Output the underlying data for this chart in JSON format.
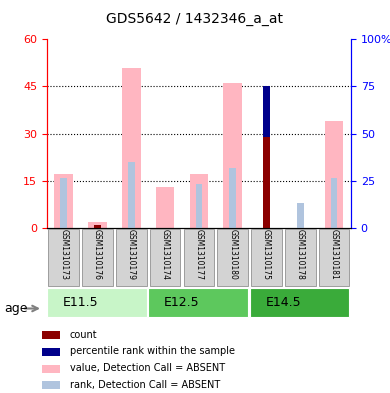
{
  "title": "GDS5642 / 1432346_a_at",
  "samples": [
    "GSM1310173",
    "GSM1310176",
    "GSM1310179",
    "GSM1310174",
    "GSM1310177",
    "GSM1310180",
    "GSM1310175",
    "GSM1310178",
    "GSM1310181"
  ],
  "age_groups": [
    {
      "label": "E11.5",
      "samples": [
        0,
        1,
        2
      ],
      "color": "#90EE90"
    },
    {
      "label": "E12.5",
      "samples": [
        3,
        4,
        5
      ],
      "color": "#3CB371"
    },
    {
      "label": "E14.5",
      "samples": [
        6,
        7,
        8
      ],
      "color": "#2E8B57"
    }
  ],
  "value_absent": [
    17,
    2,
    51,
    13,
    17,
    46,
    0,
    0,
    34
  ],
  "rank_absent": [
    16,
    0,
    21,
    0,
    14,
    19,
    0,
    8,
    16
  ],
  "count_value": [
    0,
    1,
    0,
    0,
    0,
    0,
    29,
    0,
    0
  ],
  "percentile_value": [
    0,
    0,
    0,
    0,
    0,
    0,
    16,
    0,
    0
  ],
  "rank_blue_value": [
    0,
    4,
    0,
    0,
    0,
    0,
    0,
    0,
    0
  ],
  "count_color": "#8B0000",
  "percentile_color": "#00008B",
  "value_absent_color": "#FFB6C1",
  "rank_absent_color": "#B0C4DE",
  "left_ylim": [
    0,
    60
  ],
  "right_ylim": [
    0,
    100
  ],
  "left_yticks": [
    0,
    15,
    30,
    45,
    60
  ],
  "right_yticks": [
    0,
    25,
    50,
    75,
    100
  ],
  "right_yticklabels": [
    "0",
    "25",
    "50",
    "75",
    "100%"
  ],
  "bar_width": 0.55,
  "age_label": "age"
}
